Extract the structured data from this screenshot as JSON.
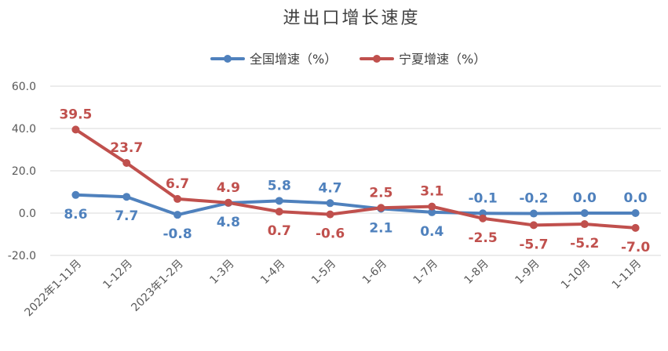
{
  "chart_data": {
    "type": "line",
    "title": "进出口增长速度",
    "xlabel": "",
    "ylabel": "",
    "ylim": [
      -20,
      60
    ],
    "yticks": [
      "60.0",
      "40.0",
      "20.0",
      "0.0",
      "-20.0"
    ],
    "ytick_values": [
      60,
      40,
      20,
      0,
      -20
    ],
    "grid": true,
    "legend_position": "top-center",
    "categories": [
      "2022年1-11月",
      "1-12月",
      "2023年1-2月",
      "1-3月",
      "1-4月",
      "1-5月",
      "1-6月",
      "1-7月",
      "1-8月",
      "1-9月",
      "1-10月",
      "1-11月"
    ],
    "series": [
      {
        "name": "全国增速（%）",
        "color": "#4F81BD",
        "values": [
          8.6,
          7.7,
          -0.8,
          4.8,
          5.8,
          4.7,
          2.1,
          0.4,
          -0.1,
          -0.2,
          0.0,
          0.0
        ],
        "labels": [
          "8.6",
          "7.7",
          "-0.8",
          "4.8",
          "5.8",
          "4.7",
          "2.1",
          "0.4",
          "-0.1",
          "-0.2",
          "0.0",
          "0.0"
        ]
      },
      {
        "name": "宁夏增速（%）",
        "color": "#C0504D",
        "values": [
          39.5,
          23.7,
          6.7,
          4.9,
          0.7,
          -0.6,
          2.5,
          3.1,
          -2.5,
          -5.7,
          -5.2,
          -7.0
        ],
        "labels": [
          "39.5",
          "23.7",
          "6.7",
          "4.9",
          "0.7",
          "-0.6",
          "2.5",
          "3.1",
          "-2.5",
          "-5.7",
          "-5.2",
          "-7.0"
        ]
      }
    ]
  }
}
